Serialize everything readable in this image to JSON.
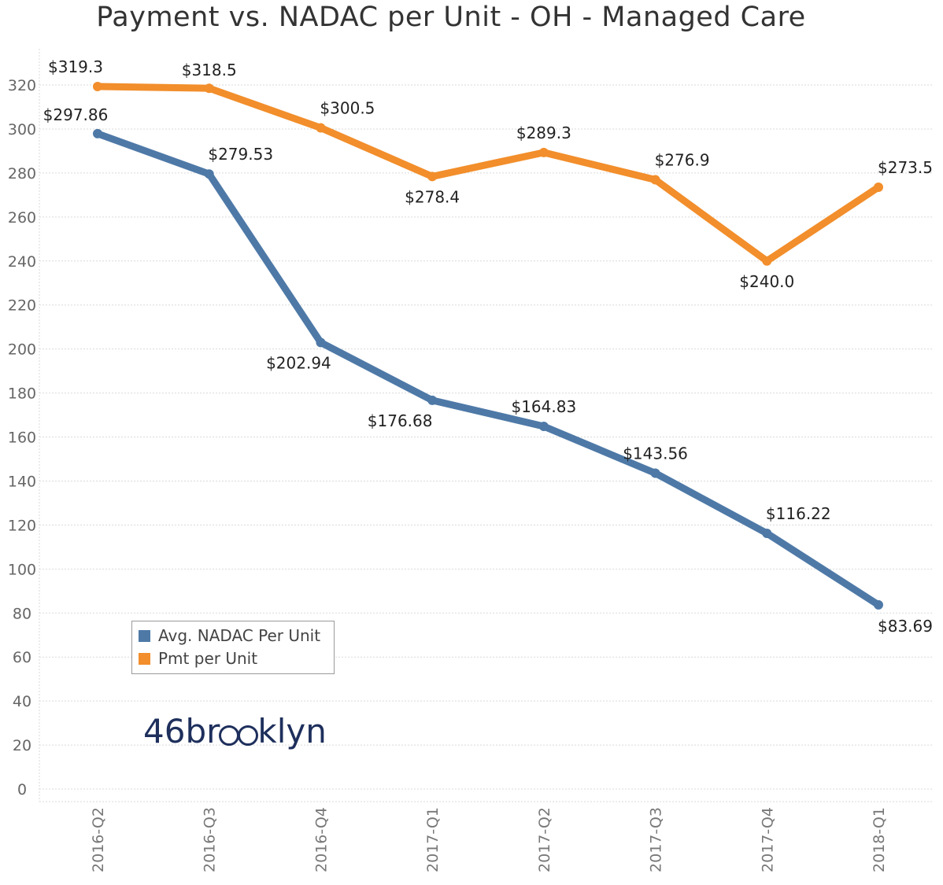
{
  "title": "Payment vs. NADAC per Unit - OH - Managed Care",
  "colors": {
    "nadac": "#4e79a7",
    "pmt": "#f28e2b",
    "grid": "#d9d9d9",
    "brand": "#1e2f5c"
  },
  "chart_data": {
    "type": "line",
    "title": "Payment vs. NADAC per Unit - OH - Managed Care",
    "categories": [
      "2016-Q2",
      "2016-Q3",
      "2016-Q4",
      "2017-Q1",
      "2017-Q2",
      "2017-Q3",
      "2017-Q4",
      "2018-Q1"
    ],
    "ylim": [
      0,
      320
    ],
    "yticks": [
      0,
      20,
      40,
      60,
      80,
      100,
      120,
      140,
      160,
      180,
      200,
      220,
      240,
      260,
      280,
      300,
      320
    ],
    "grid": true,
    "legend_position": "bottom-left",
    "series": [
      {
        "name": "Avg. NADAC Per Unit",
        "values": [
          297.86,
          279.53,
          202.94,
          176.68,
          164.83,
          143.56,
          116.22,
          83.69
        ],
        "labels": [
          "$297.86",
          "$279.53",
          "$202.94",
          "$176.68",
          "$164.83",
          "$143.56",
          "$116.22",
          "$83.69"
        ]
      },
      {
        "name": "Pmt per Unit",
        "values": [
          319.3,
          318.5,
          300.5,
          278.4,
          289.3,
          276.9,
          240.0,
          273.5
        ],
        "labels": [
          "$319.3",
          "$318.5",
          "$300.5",
          "$278.4",
          "$289.3",
          "$276.9",
          "$240.0",
          "$273.5"
        ]
      }
    ]
  },
  "legend": {
    "items": [
      {
        "label": "Avg. NADAC Per Unit",
        "color": "#4e79a7"
      },
      {
        "label": "Pmt per Unit",
        "color": "#f28e2b"
      }
    ]
  },
  "branding": {
    "logo_text": "46brooklyn"
  }
}
